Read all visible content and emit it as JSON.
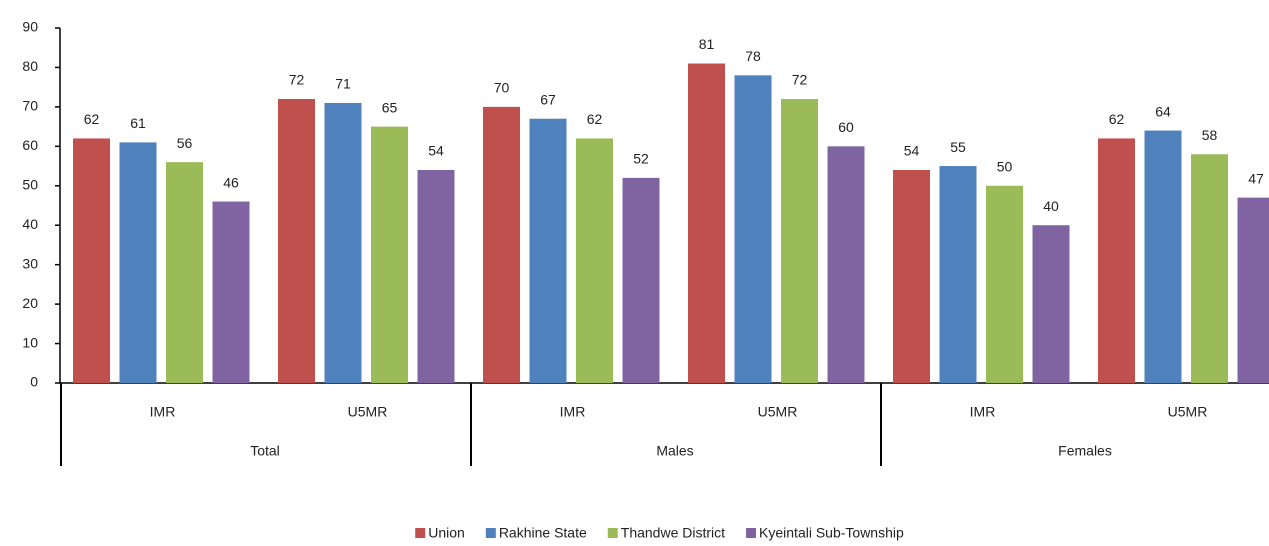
{
  "chart_data": {
    "type": "bar",
    "categories": [
      "IMR",
      "U5MR",
      "IMR",
      "U5MR",
      "IMR",
      "U5MR"
    ],
    "groups": [
      "Total",
      "Males",
      "Females"
    ],
    "series": [
      {
        "name": "Union",
        "color": "#c0504d",
        "values": [
          62,
          72,
          70,
          81,
          54,
          62
        ]
      },
      {
        "name": "Rakhine State",
        "color": "#4f81bd",
        "values": [
          61,
          71,
          67,
          78,
          55,
          64
        ]
      },
      {
        "name": "Thandwe District",
        "color": "#9bbb59",
        "values": [
          56,
          65,
          62,
          72,
          50,
          58
        ]
      },
      {
        "name": "Kyeintali Sub-Township",
        "color": "#8064a2",
        "values": [
          46,
          54,
          52,
          60,
          40,
          47
        ]
      }
    ],
    "ylim": [
      0,
      90
    ],
    "yticks": [
      0,
      10,
      20,
      30,
      40,
      50,
      60,
      70,
      80,
      90
    ],
    "legend": "bottom"
  }
}
